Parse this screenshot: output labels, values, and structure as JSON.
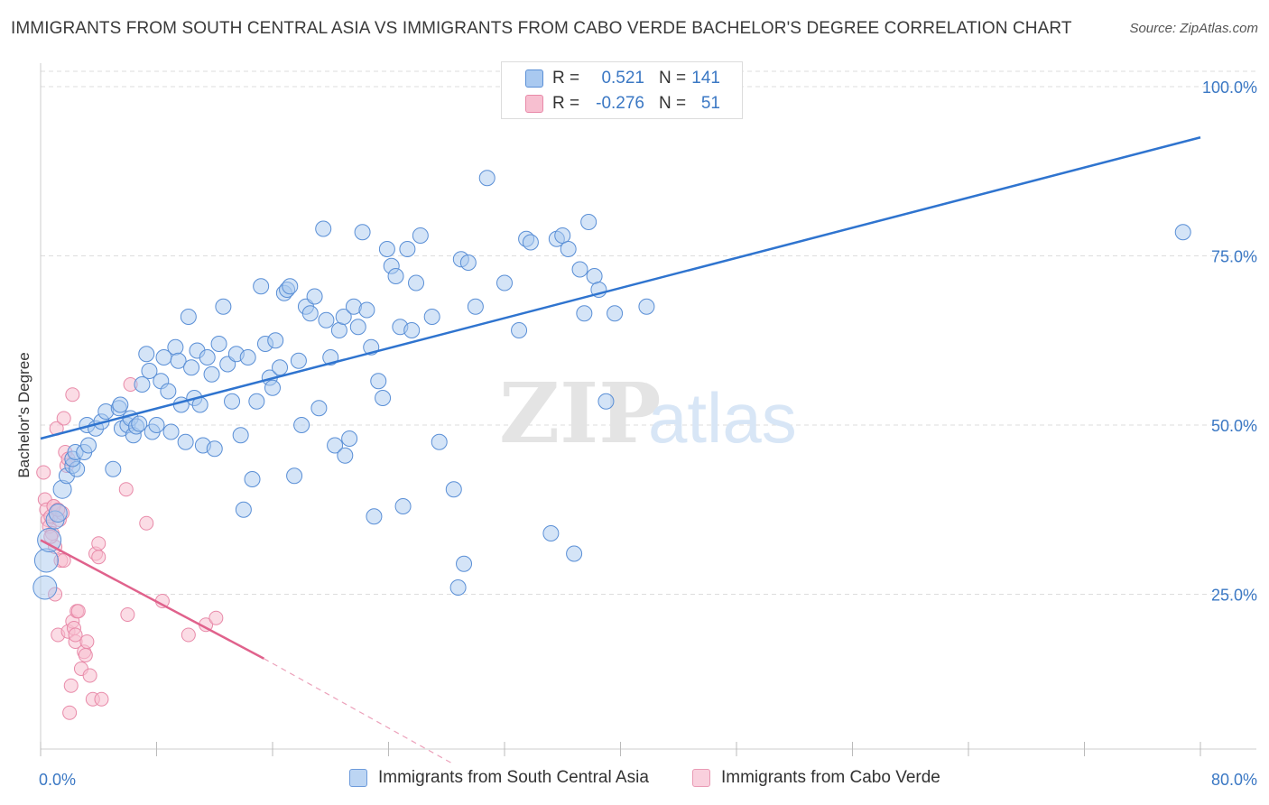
{
  "header": {
    "title": "IMMIGRANTS FROM SOUTH CENTRAL ASIA VS IMMIGRANTS FROM CABO VERDE BACHELOR'S DEGREE CORRELATION CHART",
    "source": "Source: ZipAtlas.com"
  },
  "stats": {
    "r_label": "R =",
    "n_label": "N =",
    "blue": {
      "r": "0.521",
      "n": "141"
    },
    "pink": {
      "r": "-0.276",
      "n": "51"
    }
  },
  "watermark": {
    "zip": "ZIP",
    "atlas": "atlas"
  },
  "colors": {
    "blue_fill": "#a9c9f0",
    "blue_stroke": "#5a8fd6",
    "blue_line": "#2f74cf",
    "pink_fill": "#f7bfd0",
    "pink_stroke": "#e889a8",
    "pink_line": "#e0628c",
    "grid": "#dddddd",
    "tick_text": "#3b78c4"
  },
  "chart_data": {
    "type": "scatter",
    "title": "IMMIGRANTS FROM SOUTH CENTRAL ASIA VS IMMIGRANTS FROM CABO VERDE BACHELOR'S DEGREE CORRELATION CHART",
    "xlabel": "",
    "ylabel": "Bachelor's Degree",
    "xlim": [
      0,
      80
    ],
    "ylim": [
      0,
      100
    ],
    "x_tick_labels": [
      "0.0%",
      "80.0%"
    ],
    "y_tick_labels": [
      "25.0%",
      "50.0%",
      "75.0%",
      "100.0%"
    ],
    "y_tick_values": [
      25,
      50,
      75,
      100
    ],
    "grid": true,
    "legend": "bottom",
    "series": [
      {
        "name": "Immigrants from South Central Asia",
        "color": "#5a8fd6",
        "trend": {
          "x": [
            0,
            80
          ],
          "y": [
            48.0,
            92.5
          ]
        },
        "points": [
          [
            0.3,
            26
          ],
          [
            0.4,
            30
          ],
          [
            0.6,
            33
          ],
          [
            1,
            36
          ],
          [
            1.2,
            37
          ],
          [
            1.5,
            40.5
          ],
          [
            1.8,
            42.5
          ],
          [
            2.2,
            44
          ],
          [
            2.5,
            43.5
          ],
          [
            2.2,
            45
          ],
          [
            2.4,
            46
          ],
          [
            3,
            46
          ],
          [
            3.3,
            47
          ],
          [
            3.2,
            50
          ],
          [
            3.8,
            49.5
          ],
          [
            4.2,
            50.5
          ],
          [
            4.5,
            52
          ],
          [
            5,
            43.5
          ],
          [
            5.4,
            52.5
          ],
          [
            5.5,
            53
          ],
          [
            5.6,
            49.5
          ],
          [
            6,
            50
          ],
          [
            6.2,
            51
          ],
          [
            6.4,
            48.5
          ],
          [
            6.6,
            49.8
          ],
          [
            6.8,
            50.2
          ],
          [
            7,
            56
          ],
          [
            7.3,
            60.5
          ],
          [
            7.5,
            58
          ],
          [
            7.7,
            49
          ],
          [
            8,
            50
          ],
          [
            8.3,
            56.5
          ],
          [
            8.5,
            60
          ],
          [
            8.8,
            55
          ],
          [
            9,
            49
          ],
          [
            9.3,
            61.5
          ],
          [
            9.5,
            59.5
          ],
          [
            9.7,
            53
          ],
          [
            10,
            47.5
          ],
          [
            10.2,
            66
          ],
          [
            10.4,
            58.5
          ],
          [
            10.6,
            54
          ],
          [
            10.8,
            61
          ],
          [
            11,
            53
          ],
          [
            11.2,
            47
          ],
          [
            11.5,
            60
          ],
          [
            11.8,
            57.5
          ],
          [
            12,
            46.5
          ],
          [
            12.3,
            62
          ],
          [
            12.6,
            67.5
          ],
          [
            12.9,
            59
          ],
          [
            13.2,
            53.5
          ],
          [
            13.5,
            60.5
          ],
          [
            13.8,
            48.5
          ],
          [
            14,
            37.5
          ],
          [
            14.3,
            60
          ],
          [
            14.6,
            42
          ],
          [
            14.9,
            53.5
          ],
          [
            15.2,
            70.5
          ],
          [
            15.5,
            62
          ],
          [
            15.8,
            57
          ],
          [
            16,
            55.5
          ],
          [
            16.2,
            62.5
          ],
          [
            16.5,
            58.5
          ],
          [
            16.8,
            69.5
          ],
          [
            17,
            70
          ],
          [
            17.2,
            70.5
          ],
          [
            17.5,
            42.5
          ],
          [
            17.8,
            59.5
          ],
          [
            18,
            50
          ],
          [
            18.3,
            67.5
          ],
          [
            18.6,
            66.5
          ],
          [
            18.9,
            69
          ],
          [
            19.2,
            52.5
          ],
          [
            19.5,
            79
          ],
          [
            19.7,
            65.5
          ],
          [
            20,
            60
          ],
          [
            20.3,
            47
          ],
          [
            20.6,
            64
          ],
          [
            20.9,
            66
          ],
          [
            21,
            45.5
          ],
          [
            21.3,
            48
          ],
          [
            21.6,
            67.5
          ],
          [
            21.9,
            64.5
          ],
          [
            22.2,
            78.5
          ],
          [
            22.5,
            67
          ],
          [
            22.8,
            61.5
          ],
          [
            23,
            36.5
          ],
          [
            23.3,
            56.5
          ],
          [
            23.6,
            54
          ],
          [
            23.9,
            76
          ],
          [
            24.2,
            73.5
          ],
          [
            24.5,
            72
          ],
          [
            24.8,
            64.5
          ],
          [
            25,
            38
          ],
          [
            25.3,
            76
          ],
          [
            25.6,
            64
          ],
          [
            25.9,
            71
          ],
          [
            26.2,
            78
          ],
          [
            27,
            66
          ],
          [
            27.5,
            47.5
          ],
          [
            28.5,
            40.5
          ],
          [
            28.8,
            26
          ],
          [
            29,
            74.5
          ],
          [
            29.2,
            29.5
          ],
          [
            29.5,
            74
          ],
          [
            30,
            67.5
          ],
          [
            30.8,
            86.5
          ],
          [
            32,
            71
          ],
          [
            33,
            64
          ],
          [
            33.5,
            77.5
          ],
          [
            33.8,
            77
          ],
          [
            35.2,
            34
          ],
          [
            35.6,
            77.5
          ],
          [
            36,
            78
          ],
          [
            36.4,
            76
          ],
          [
            36.8,
            31
          ],
          [
            37.2,
            73
          ],
          [
            37.5,
            66.5
          ],
          [
            37.8,
            80
          ],
          [
            38.2,
            72
          ],
          [
            38.5,
            70
          ],
          [
            39,
            53.5
          ],
          [
            39.6,
            66.5
          ],
          [
            41.8,
            67.5
          ],
          [
            78.8,
            78.5
          ]
        ]
      },
      {
        "name": "Immigrants from Cabo Verde",
        "color": "#e889a8",
        "trend": {
          "x": [
            0,
            15.4
          ],
          "y": [
            33.0,
            15.5
          ]
        },
        "trend_dashed": {
          "x": [
            15.4,
            28.4
          ],
          "y": [
            15.5,
            0
          ]
        },
        "points": [
          [
            0.2,
            43
          ],
          [
            0.3,
            39
          ],
          [
            0.4,
            37.5
          ],
          [
            0.5,
            36
          ],
          [
            0.6,
            35
          ],
          [
            0.7,
            36.5
          ],
          [
            0.8,
            34
          ],
          [
            0.9,
            38
          ],
          [
            1,
            32
          ],
          [
            1,
            25
          ],
          [
            1.1,
            49.5
          ],
          [
            1.2,
            19
          ],
          [
            1.3,
            36
          ],
          [
            1.4,
            30
          ],
          [
            1.5,
            37
          ],
          [
            1.6,
            51
          ],
          [
            1.7,
            46
          ],
          [
            1.8,
            44
          ],
          [
            1.9,
            19.5
          ],
          [
            2,
            7.5
          ],
          [
            2.1,
            11.5
          ],
          [
            2.2,
            21
          ],
          [
            2.3,
            20
          ],
          [
            2.4,
            18
          ],
          [
            2.5,
            22.5
          ],
          [
            2.6,
            22.5
          ],
          [
            2.8,
            14
          ],
          [
            3,
            16.5
          ],
          [
            3.2,
            18
          ],
          [
            3.4,
            13
          ],
          [
            3.6,
            9.5
          ],
          [
            3.8,
            31
          ],
          [
            4,
            30.5
          ],
          [
            4,
            32.5
          ],
          [
            4.2,
            9.5
          ],
          [
            5.9,
            40.5
          ],
          [
            6,
            22
          ],
          [
            6.2,
            56
          ],
          [
            7.3,
            35.5
          ],
          [
            8.4,
            24
          ],
          [
            10.2,
            19
          ],
          [
            11.4,
            20.5
          ],
          [
            12.1,
            21.5
          ],
          [
            2.2,
            54.5
          ],
          [
            1.6,
            30
          ],
          [
            0.9,
            38
          ],
          [
            1.2,
            37.5
          ],
          [
            0.7,
            33.5
          ],
          [
            1.9,
            45
          ],
          [
            2.4,
            19
          ],
          [
            3.1,
            16
          ]
        ]
      }
    ]
  },
  "legend_bottom": {
    "blue_label": "Immigrants from South Central Asia",
    "pink_label": "Immigrants from Cabo Verde"
  }
}
